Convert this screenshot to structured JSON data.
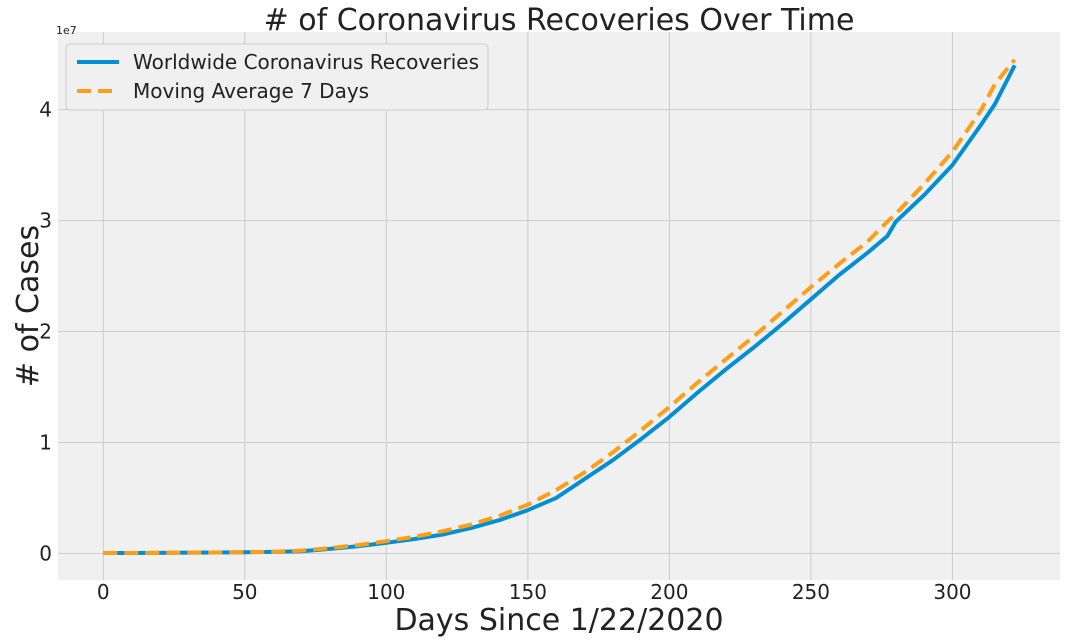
{
  "chart_data": {
    "type": "line",
    "title": "# of Coronavirus Recoveries Over Time",
    "xlabel": "Days Since 1/22/2020",
    "ylabel": "# of Cases",
    "y_scale_label": "1e7",
    "xlim": [
      -16,
      338
    ],
    "ylim": [
      -2400000,
      47000000
    ],
    "x_ticks": [
      0,
      50,
      100,
      150,
      200,
      250,
      300
    ],
    "x_tick_labels": [
      "0",
      "50",
      "100",
      "150",
      "200",
      "250",
      "300"
    ],
    "y_ticks": [
      0,
      10000000,
      20000000,
      30000000,
      40000000
    ],
    "y_tick_labels": [
      "0",
      "1",
      "2",
      "3",
      "4"
    ],
    "grid": true,
    "legend_position": "top-left",
    "series": [
      {
        "name": "Worldwide Coronavirus Recoveries",
        "color": "#008fd5",
        "style": "solid",
        "x": [
          0,
          10,
          20,
          30,
          40,
          50,
          60,
          70,
          80,
          90,
          100,
          110,
          120,
          130,
          140,
          150,
          160,
          170,
          180,
          190,
          200,
          210,
          220,
          230,
          240,
          250,
          260,
          270,
          277,
          280,
          290,
          300,
          310,
          315,
          322
        ],
        "y": [
          30000,
          35000,
          40000,
          70000,
          80000,
          100000,
          130000,
          200000,
          400000,
          650000,
          950000,
          1300000,
          1700000,
          2300000,
          3000000,
          3900000,
          5000000,
          6700000,
          8400000,
          10300000,
          12300000,
          14500000,
          16600000,
          18600000,
          20700000,
          22900000,
          25100000,
          27100000,
          28600000,
          29900000,
          32300000,
          35000000,
          38600000,
          40500000,
          44000000
        ]
      },
      {
        "name": "Moving Average 7 Days",
        "color": "#fc9e17",
        "style": "dashed",
        "x": [
          0,
          10,
          20,
          30,
          40,
          50,
          60,
          70,
          80,
          90,
          100,
          110,
          120,
          130,
          140,
          150,
          160,
          170,
          180,
          190,
          200,
          210,
          220,
          230,
          240,
          250,
          260,
          270,
          277,
          280,
          290,
          300,
          310,
          315,
          322
        ],
        "y": [
          30000,
          35000,
          40000,
          70000,
          80000,
          110000,
          150000,
          250000,
          480000,
          750000,
          1100000,
          1500000,
          2000000,
          2600000,
          3400000,
          4400000,
          5700000,
          7300000,
          9100000,
          11100000,
          13200000,
          15400000,
          17500000,
          19600000,
          21800000,
          24000000,
          26100000,
          28100000,
          29900000,
          30600000,
          33300000,
          36200000,
          39900000,
          42300000,
          44500000
        ]
      }
    ]
  }
}
